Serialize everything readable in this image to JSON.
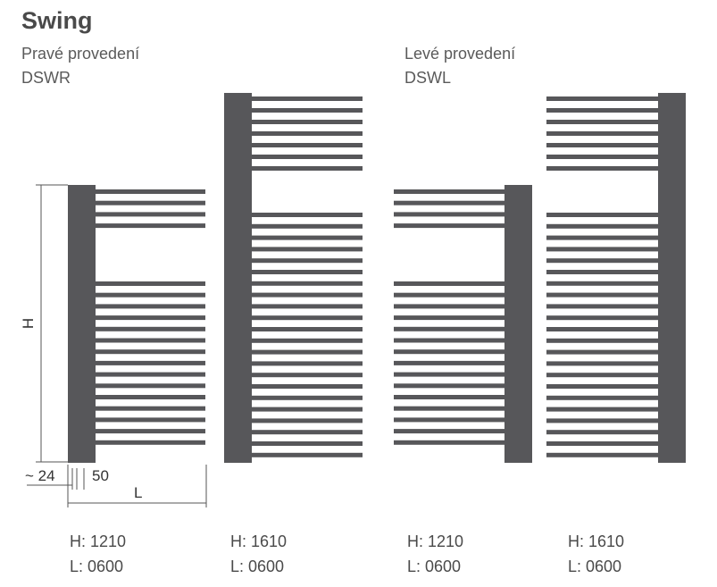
{
  "title": "Swing",
  "colors": {
    "radiator": "#57575a",
    "dimension_line": "#555555",
    "text": "#4a4a4a"
  },
  "right_version": {
    "label": "Pravé provedení",
    "code": "DSWR"
  },
  "left_version": {
    "label": "Levé provedení",
    "code": "DSWL"
  },
  "dimensions": {
    "height_label": "H",
    "offset_label": "~ 24",
    "pipe_label": "50",
    "length_label": "L"
  },
  "variants": [
    {
      "h": "H: 1210",
      "l": "L: 0600"
    },
    {
      "h": "H: 1610",
      "l": "L: 0600"
    },
    {
      "h": "H: 1210",
      "l": "L: 0600"
    },
    {
      "h": "H: 1610",
      "l": "L: 0600"
    }
  ]
}
